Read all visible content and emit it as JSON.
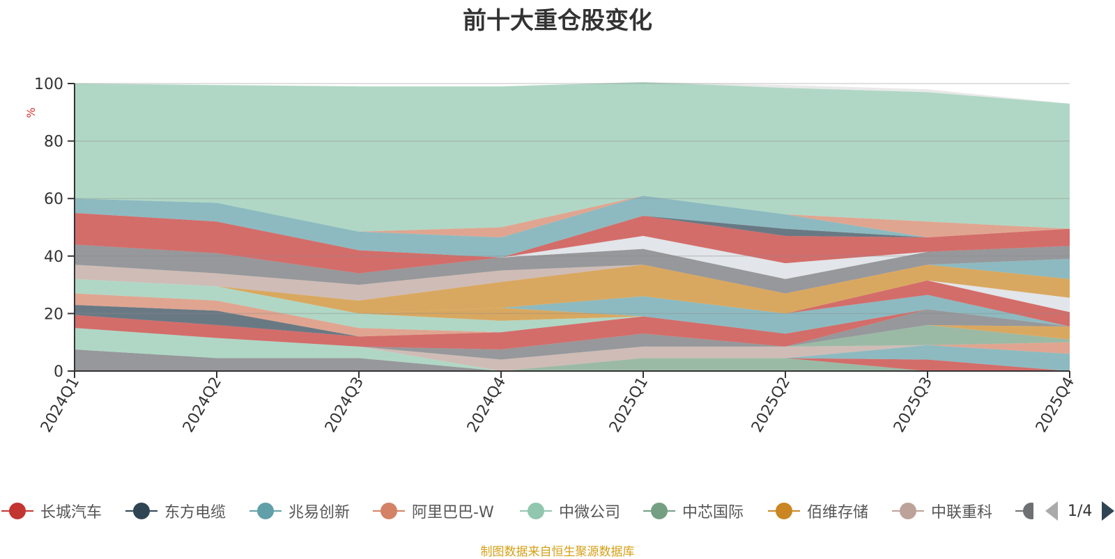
{
  "chart_data": {
    "type": "area",
    "title": "前十大重仓股变化",
    "unit": "%",
    "source_note": "制图数据来自恒生聚源数据库",
    "xlabel": "",
    "ylabel": "%",
    "ylim": [
      0,
      100
    ],
    "yticks": [
      0,
      20,
      40,
      60,
      80,
      100
    ],
    "categories": [
      "2024Q1",
      "2024Q2",
      "2024Q3",
      "2024Q4",
      "2025Q1",
      "2025Q2",
      "2025Q3",
      "2025Q4"
    ],
    "legend_placement": "bottom",
    "legend_page": "1/4",
    "legend_visible": [
      {
        "name": "长城汽车",
        "color": "#c23531"
      },
      {
        "name": "东方电缆",
        "color": "#2f4554"
      },
      {
        "name": "兆易创新",
        "color": "#61a0a8"
      },
      {
        "name": "阿里巴巴-W",
        "color": "#d48265"
      },
      {
        "name": "中微公司",
        "color": "#91c7ae"
      },
      {
        "name": "中芯国际",
        "color": "#749f83"
      },
      {
        "name": "佰维存储",
        "color": "#ca8622"
      },
      {
        "name": "中联重科",
        "color": "#bda29a"
      },
      {
        "name": "",
        "color": "#6e7074"
      }
    ],
    "series": [
      {
        "color": "#6e7074",
        "values": [
          7.5,
          4.5,
          4.5,
          0,
          0,
          0,
          0,
          0
        ]
      },
      {
        "color": "#91c7ae",
        "values": [
          7.5,
          7,
          4,
          0,
          0,
          0,
          0,
          0
        ]
      },
      {
        "color": "#749f83",
        "values": [
          0,
          0,
          0,
          0,
          4.5,
          4.5,
          0,
          0
        ]
      },
      {
        "color": "#c23531",
        "values": [
          0,
          0,
          0,
          0,
          0,
          0,
          4,
          0
        ]
      },
      {
        "color": "#61a0a8",
        "values": [
          0,
          0,
          0,
          0,
          0,
          0,
          5,
          6
        ]
      },
      {
        "color": "#d48265",
        "values": [
          0,
          0,
          0,
          0,
          0,
          0,
          0,
          4
        ]
      },
      {
        "color": "#bda29a",
        "values": [
          0,
          0,
          0,
          4,
          4,
          4,
          0,
          0
        ]
      },
      {
        "color": "#6e7074",
        "values": [
          0,
          0,
          0,
          3.5,
          4.5,
          0,
          0,
          0
        ]
      },
      {
        "color": "#749f83",
        "values": [
          0,
          0,
          0,
          0,
          0,
          0,
          7,
          1
        ]
      },
      {
        "color": "#ca8622",
        "values": [
          0,
          0,
          0,
          0,
          0,
          0,
          0,
          4.5
        ]
      },
      {
        "color": "#6e7074",
        "values": [
          0,
          0,
          0,
          0,
          0,
          0,
          5.5,
          0
        ]
      },
      {
        "color": "#c23531",
        "values": [
          4.5,
          4.5,
          3.5,
          6,
          6,
          4.5,
          0,
          0
        ]
      },
      {
        "color": "#2f4554",
        "values": [
          3.5,
          5,
          0,
          0,
          0,
          0,
          0,
          0
        ]
      },
      {
        "color": "#d48265",
        "values": [
          4,
          3.5,
          3,
          0,
          0,
          0,
          0,
          0
        ]
      },
      {
        "color": "#91c7ae",
        "values": [
          5,
          5,
          5,
          4,
          0,
          0,
          0,
          0
        ]
      },
      {
        "color": "#ca8622",
        "values": [
          0,
          0,
          0,
          4.5,
          0,
          0,
          0,
          0
        ]
      },
      {
        "color": "#61a0a8",
        "values": [
          0,
          0,
          0,
          0,
          7,
          7,
          5,
          0
        ]
      },
      {
        "color": "#c23531",
        "values": [
          0,
          0,
          0,
          0,
          0,
          0,
          5,
          5
        ]
      },
      {
        "color": "#d7dbe1",
        "values": [
          0,
          0,
          0,
          0,
          0,
          0,
          0,
          5
        ]
      },
      {
        "color": "#ca8622",
        "values": [
          0,
          0,
          4.5,
          9,
          11,
          7,
          5.5,
          6.5
        ]
      },
      {
        "color": "#61a0a8",
        "values": [
          0,
          0,
          0,
          0,
          0,
          0,
          0,
          7
        ]
      },
      {
        "color": "#bda29a",
        "values": [
          5,
          4.5,
          5.5,
          4,
          0,
          0,
          0,
          0
        ]
      },
      {
        "color": "#6e7074",
        "values": [
          7,
          7,
          4,
          4.5,
          5.5,
          5,
          4.5,
          4.5
        ]
      },
      {
        "color": "#d7dbe1",
        "values": [
          0,
          0,
          0,
          0,
          4.5,
          5.5,
          0,
          0
        ]
      },
      {
        "color": "#c23531",
        "values": [
          11,
          11,
          8,
          0,
          7,
          9.5,
          5,
          6
        ]
      },
      {
        "color": "#2f4554",
        "values": [
          0,
          0,
          0,
          0,
          0,
          2.5,
          0,
          0
        ]
      },
      {
        "color": "#61a0a8",
        "values": [
          5,
          6.5,
          6.5,
          7,
          7,
          5,
          0,
          0
        ]
      },
      {
        "color": "#d48265",
        "values": [
          0,
          0,
          0,
          3.5,
          0,
          0,
          5.5,
          0
        ]
      },
      {
        "color": "#91c7ae",
        "values": [
          40,
          41,
          50.5,
          49,
          39.5,
          44,
          45,
          43.5
        ]
      },
      {
        "color": "#e0e0e0",
        "values": [
          0,
          0,
          0,
          0,
          0,
          1,
          1,
          0
        ]
      }
    ]
  }
}
